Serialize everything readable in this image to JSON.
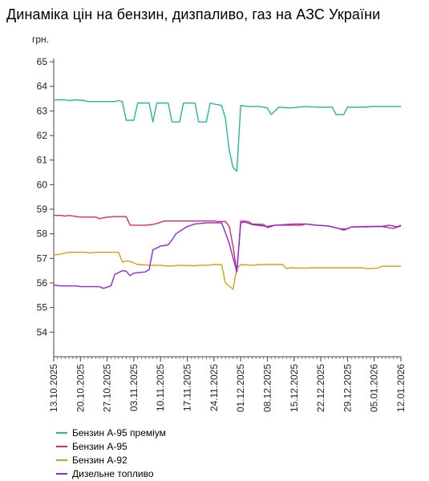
{
  "chart_data": {
    "type": "line",
    "title": "Динаміка цін на бензин, дизпаливо, газ на АЗС України",
    "ylabel": "грн.",
    "xlabel": "",
    "ylim": [
      53,
      65
    ],
    "yticks": [
      54,
      55,
      56,
      57,
      58,
      59,
      60,
      61,
      62,
      63,
      64,
      65
    ],
    "x_range": [
      "2025-10-13",
      "2026-01-12"
    ],
    "xticks": [
      "13.10.2025",
      "20.10.2025",
      "27.10.2025",
      "03.11.2025",
      "10.11.2025",
      "17.11.2025",
      "24.11.2025",
      "01.12.2025",
      "08.12.2025",
      "15.12.2025",
      "22.12.2025",
      "29.12.2025",
      "05.01.2026",
      "12.01.2026"
    ],
    "grid": false,
    "legend_position": "bottom-left",
    "series": [
      {
        "name": "Бензин А-95 преміум",
        "color": "#2bb598",
        "points": [
          [
            "2025-10-13",
            63.45
          ],
          [
            "2025-10-16",
            63.45
          ],
          [
            "2025-10-17",
            63.42
          ],
          [
            "2025-10-19",
            63.45
          ],
          [
            "2025-10-21",
            63.42
          ],
          [
            "2025-10-22",
            63.38
          ],
          [
            "2025-10-29",
            63.38
          ],
          [
            "2025-10-30",
            63.42
          ],
          [
            "2025-10-31",
            63.38
          ],
          [
            "2025-11-01",
            62.62
          ],
          [
            "2025-11-03",
            62.62
          ],
          [
            "2025-11-04",
            63.32
          ],
          [
            "2025-11-07",
            63.32
          ],
          [
            "2025-11-08",
            62.55
          ],
          [
            "2025-11-09",
            63.32
          ],
          [
            "2025-11-12",
            63.32
          ],
          [
            "2025-11-13",
            62.55
          ],
          [
            "2025-11-15",
            62.55
          ],
          [
            "2025-11-16",
            63.32
          ],
          [
            "2025-11-19",
            63.32
          ],
          [
            "2025-11-20",
            62.55
          ],
          [
            "2025-11-22",
            62.55
          ],
          [
            "2025-11-23",
            63.32
          ],
          [
            "2025-11-24",
            63.28
          ],
          [
            "2025-11-26",
            63.22
          ],
          [
            "2025-11-27",
            62.7
          ],
          [
            "2025-11-28",
            61.4
          ],
          [
            "2025-11-29",
            60.7
          ],
          [
            "2025-11-30",
            60.55
          ],
          [
            "2025-12-01",
            63.22
          ],
          [
            "2025-12-03",
            63.18
          ],
          [
            "2025-12-06",
            63.18
          ],
          [
            "2025-12-08",
            63.12
          ],
          [
            "2025-12-09",
            62.85
          ],
          [
            "2025-12-11",
            63.15
          ],
          [
            "2025-12-14",
            63.12
          ],
          [
            "2025-12-18",
            63.18
          ],
          [
            "2025-12-21",
            63.15
          ],
          [
            "2025-12-25",
            63.15
          ],
          [
            "2025-12-26",
            62.85
          ],
          [
            "2025-12-28",
            62.85
          ],
          [
            "2025-12-29",
            63.15
          ],
          [
            "2026-01-03",
            63.15
          ],
          [
            "2026-01-04",
            63.18
          ],
          [
            "2026-01-12",
            63.18
          ]
        ]
      },
      {
        "name": "Бензин А-95",
        "color": "#d62c6e",
        "points": [
          [
            "2025-10-13",
            58.75
          ],
          [
            "2025-10-15",
            58.75
          ],
          [
            "2025-10-16",
            58.72
          ],
          [
            "2025-10-17",
            58.75
          ],
          [
            "2025-10-19",
            58.7
          ],
          [
            "2025-10-20",
            58.68
          ],
          [
            "2025-10-24",
            58.68
          ],
          [
            "2025-10-25",
            58.62
          ],
          [
            "2025-10-27",
            58.68
          ],
          [
            "2025-10-29",
            58.7
          ],
          [
            "2025-11-01",
            58.7
          ],
          [
            "2025-11-02",
            58.35
          ],
          [
            "2025-11-06",
            58.35
          ],
          [
            "2025-11-08",
            58.38
          ],
          [
            "2025-11-09",
            58.42
          ],
          [
            "2025-11-11",
            58.52
          ],
          [
            "2025-11-24",
            58.52
          ],
          [
            "2025-11-25",
            58.5
          ],
          [
            "2025-11-27",
            58.5
          ],
          [
            "2025-11-28",
            58.3
          ],
          [
            "2025-11-29",
            57.5
          ],
          [
            "2025-11-30",
            56.45
          ],
          [
            "2025-12-01",
            58.52
          ],
          [
            "2025-12-03",
            58.5
          ],
          [
            "2025-12-04",
            58.4
          ],
          [
            "2025-12-07",
            58.38
          ],
          [
            "2025-12-08",
            58.25
          ],
          [
            "2025-12-10",
            58.35
          ],
          [
            "2025-12-17",
            58.35
          ],
          [
            "2025-12-18",
            58.4
          ],
          [
            "2025-12-21",
            58.35
          ],
          [
            "2025-12-24",
            58.32
          ],
          [
            "2025-12-27",
            58.2
          ],
          [
            "2025-12-29",
            58.2
          ],
          [
            "2025-12-30",
            58.28
          ],
          [
            "2026-01-03",
            58.28
          ],
          [
            "2026-01-05",
            58.3
          ],
          [
            "2026-01-07",
            58.3
          ],
          [
            "2026-01-10",
            58.22
          ],
          [
            "2026-01-12",
            58.32
          ]
        ]
      },
      {
        "name": "Бензин А-92",
        "color": "#d4a017",
        "points": [
          [
            "2025-10-13",
            57.15
          ],
          [
            "2025-10-14",
            57.15
          ],
          [
            "2025-10-17",
            57.25
          ],
          [
            "2025-10-21",
            57.25
          ],
          [
            "2025-10-23",
            57.22
          ],
          [
            "2025-10-24",
            57.25
          ],
          [
            "2025-10-30",
            57.25
          ],
          [
            "2025-10-31",
            56.85
          ],
          [
            "2025-11-01",
            56.9
          ],
          [
            "2025-11-02",
            56.88
          ],
          [
            "2025-11-04",
            56.75
          ],
          [
            "2025-11-08",
            56.72
          ],
          [
            "2025-11-10",
            56.72
          ],
          [
            "2025-11-12",
            56.68
          ],
          [
            "2025-11-15",
            56.72
          ],
          [
            "2025-11-19",
            56.7
          ],
          [
            "2025-11-20",
            56.72
          ],
          [
            "2025-11-22",
            56.72
          ],
          [
            "2025-11-24",
            56.75
          ],
          [
            "2025-11-26",
            56.75
          ],
          [
            "2025-11-27",
            56.0
          ],
          [
            "2025-11-29",
            55.75
          ],
          [
            "2025-11-30",
            56.6
          ],
          [
            "2025-12-01",
            56.75
          ],
          [
            "2025-12-04",
            56.72
          ],
          [
            "2025-12-06",
            56.75
          ],
          [
            "2025-12-12",
            56.75
          ],
          [
            "2025-12-13",
            56.58
          ],
          [
            "2025-12-14",
            56.62
          ],
          [
            "2025-12-18",
            56.6
          ],
          [
            "2025-12-20",
            56.62
          ],
          [
            "2026-01-02",
            56.62
          ],
          [
            "2026-01-03",
            56.58
          ],
          [
            "2026-01-06",
            56.6
          ],
          [
            "2026-01-07",
            56.68
          ],
          [
            "2026-01-12",
            56.68
          ]
        ]
      },
      {
        "name": "Дизельне топливо",
        "color": "#8a2bd6",
        "points": [
          [
            "2025-10-13",
            55.92
          ],
          [
            "2025-10-15",
            55.88
          ],
          [
            "2025-10-19",
            55.88
          ],
          [
            "2025-10-20",
            55.85
          ],
          [
            "2025-10-25",
            55.85
          ],
          [
            "2025-10-26",
            55.78
          ],
          [
            "2025-10-28",
            55.88
          ],
          [
            "2025-10-29",
            56.35
          ],
          [
            "2025-10-31",
            56.5
          ],
          [
            "2025-11-01",
            56.48
          ],
          [
            "2025-11-02",
            56.3
          ],
          [
            "2025-11-03",
            56.4
          ],
          [
            "2025-11-06",
            56.45
          ],
          [
            "2025-11-07",
            56.55
          ],
          [
            "2025-11-08",
            57.35
          ],
          [
            "2025-11-10",
            57.5
          ],
          [
            "2025-11-12",
            57.55
          ],
          [
            "2025-11-13",
            57.75
          ],
          [
            "2025-11-14",
            58.0
          ],
          [
            "2025-11-17",
            58.3
          ],
          [
            "2025-11-19",
            58.4
          ],
          [
            "2025-11-22",
            58.45
          ],
          [
            "2025-11-26",
            58.45
          ],
          [
            "2025-11-27",
            58.05
          ],
          [
            "2025-11-28",
            57.6
          ],
          [
            "2025-11-30",
            56.45
          ],
          [
            "2025-12-01",
            58.45
          ],
          [
            "2025-12-02",
            58.48
          ],
          [
            "2025-12-04",
            58.38
          ],
          [
            "2025-12-08",
            58.3
          ],
          [
            "2025-12-10",
            58.35
          ],
          [
            "2025-12-15",
            58.4
          ],
          [
            "2025-12-18",
            58.4
          ],
          [
            "2025-12-21",
            58.35
          ],
          [
            "2025-12-24",
            58.32
          ],
          [
            "2025-12-26",
            58.25
          ],
          [
            "2025-12-28",
            58.15
          ],
          [
            "2025-12-30",
            58.28
          ],
          [
            "2026-01-03",
            58.3
          ],
          [
            "2026-01-07",
            58.3
          ],
          [
            "2026-01-09",
            58.35
          ],
          [
            "2026-01-11",
            58.28
          ],
          [
            "2026-01-12",
            58.35
          ]
        ]
      }
    ]
  }
}
